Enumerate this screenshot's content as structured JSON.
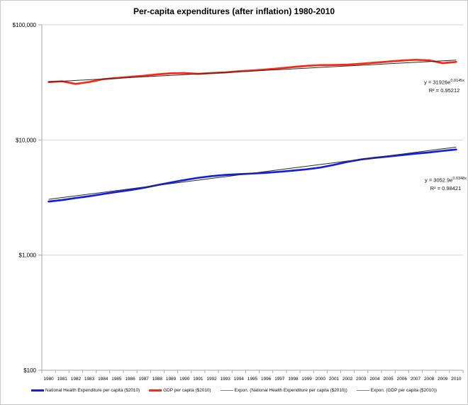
{
  "figure_title": "Per-capita expenditures (after inflation) 1980-2010",
  "chart_data": {
    "type": "line",
    "title": "Per-capita expenditures (after inflation) 1980-2010",
    "x_categories": [
      "1980",
      "1981",
      "1982",
      "1983",
      "1984",
      "1985",
      "1986",
      "1987",
      "1988",
      "1989",
      "1990",
      "1991",
      "1992",
      "1993",
      "1994",
      "1995",
      "1996",
      "1997",
      "1998",
      "1999",
      "2000",
      "2001",
      "2002",
      "2003",
      "2004",
      "2005",
      "2006",
      "2007",
      "2008",
      "2009",
      "2010"
    ],
    "y_axis": {
      "scale": "log10",
      "min": 100,
      "max": 100000,
      "tick_values": [
        100000,
        10000,
        1000,
        100
      ],
      "tick_labels": [
        "$100,000",
        "$10,000",
        "$1,000",
        "$100"
      ]
    },
    "grid": true,
    "legend_position": "bottom",
    "series": [
      {
        "name": "National Health Expenditure per capita ($2010)",
        "kind": "data",
        "color": "#1420dd",
        "legend_color": "#1420dd",
        "values": [
          2920,
          3010,
          3130,
          3250,
          3390,
          3530,
          3670,
          3840,
          4060,
          4270,
          4490,
          4690,
          4850,
          4970,
          5040,
          5110,
          5190,
          5290,
          5420,
          5560,
          5760,
          6080,
          6450,
          6770,
          7000,
          7190,
          7390,
          7610,
          7790,
          8040,
          8260
        ]
      },
      {
        "name": "GDP per capita ($2010)",
        "kind": "data",
        "color": "#f92a15",
        "legend_color": "#f92a15",
        "values": [
          31900,
          32300,
          30700,
          31900,
          33700,
          34500,
          35300,
          36100,
          37100,
          37900,
          38100,
          37500,
          38100,
          38600,
          39500,
          40100,
          40900,
          41900,
          43000,
          44000,
          44700,
          44800,
          45100,
          45900,
          46900,
          47900,
          48900,
          49700,
          49100,
          46500,
          47600
        ]
      },
      {
        "name": "Expon. (National Health Expenditure per capita ($2010))",
        "kind": "trend",
        "color": "#2b2b2b",
        "legend_color": "#808080",
        "a": 3052.9,
        "b": 0.0348
      },
      {
        "name": "Expon. (GDP per capita ($2010))",
        "kind": "trend",
        "color": "#2b2b2b",
        "legend_color": "#808080",
        "a": 31926,
        "b": 0.0145
      }
    ],
    "annotations": [
      {
        "eq_prefix": "y = 31926e",
        "eq_exponent": "0.0145x",
        "r2": "R² = 0.95212"
      },
      {
        "eq_prefix": "y = 3052.9e",
        "eq_exponent": "0.0348x",
        "r2": "R² = 0.98421"
      }
    ]
  }
}
